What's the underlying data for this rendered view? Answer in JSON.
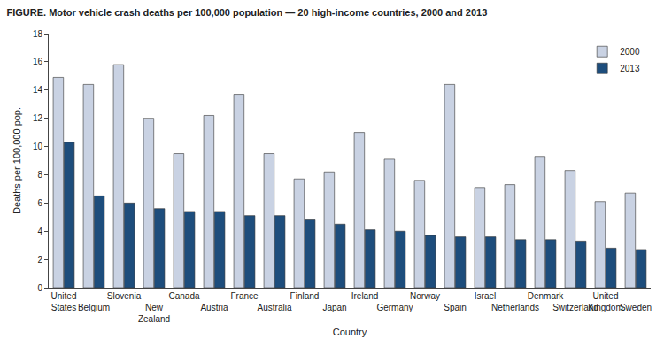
{
  "chart_data": {
    "type": "bar",
    "title": "FIGURE. Motor vehicle crash deaths per 100,000 population — 20 high-income countries, 2000 and 2013",
    "x_label": "Country",
    "y_label": "Deaths per 100,000 pop.",
    "categories": [
      "United States",
      "Belgium",
      "Slovenia",
      "New Zealand",
      "Canada",
      "Austria",
      "France",
      "Australia",
      "Finland",
      "Japan",
      "Ireland",
      "Germany",
      "Norway",
      "Spain",
      "Israel",
      "Netherlands",
      "Denmark",
      "Switzerland",
      "United Kingdom",
      "Sweden"
    ],
    "series": [
      {
        "name": "2000",
        "color": "#c9d2e3",
        "values": [
          14.9,
          14.4,
          15.8,
          12.0,
          9.5,
          12.2,
          13.7,
          9.5,
          7.7,
          8.2,
          11.0,
          9.1,
          7.6,
          14.4,
          7.1,
          7.3,
          9.3,
          8.3,
          6.1,
          6.7
        ]
      },
      {
        "name": "2013",
        "color": "#1d4d7c",
        "values": [
          10.3,
          6.5,
          6.0,
          5.6,
          5.4,
          5.4,
          5.1,
          5.1,
          4.8,
          4.5,
          4.1,
          4.0,
          3.7,
          3.6,
          3.6,
          3.4,
          3.4,
          3.3,
          2.8,
          2.7
        ]
      }
    ],
    "ylim": [
      0,
      18
    ],
    "yticks": [
      0,
      2,
      4,
      6,
      8,
      10,
      12,
      14,
      16,
      18
    ],
    "grid": false,
    "legend": "upper right"
  }
}
